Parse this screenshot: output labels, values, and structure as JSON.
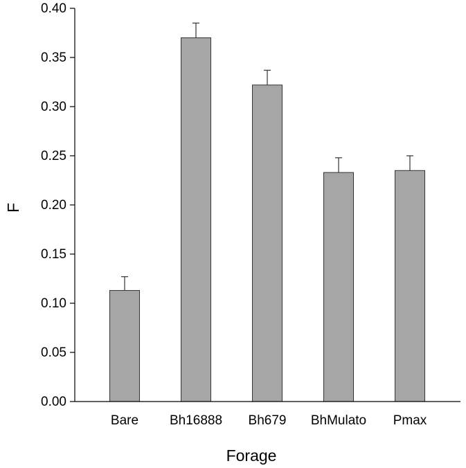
{
  "chart_data": {
    "type": "bar",
    "title": "",
    "xlabel": "Forage",
    "ylabel": "F",
    "categories": [
      "Bare",
      "Bh16888",
      "Bh679",
      "BhMulato",
      "Pmax"
    ],
    "values": [
      0.113,
      0.37,
      0.322,
      0.233,
      0.235
    ],
    "error_plus": [
      0.014,
      0.015,
      0.015,
      0.015,
      0.015
    ],
    "ylim": [
      0.0,
      0.4
    ],
    "yticks": [
      0.0,
      0.05,
      0.1,
      0.15,
      0.2,
      0.25,
      0.3,
      0.35,
      0.4
    ],
    "ytick_labels": [
      "0.00",
      "0.05",
      "0.10",
      "0.15",
      "0.20",
      "0.25",
      "0.30",
      "0.35",
      "0.40"
    ],
    "grid": false,
    "legend": "none",
    "colors": {
      "bar_fill": "#a6a6a6",
      "bar_edge": "#333333",
      "axis": "#000000"
    }
  }
}
